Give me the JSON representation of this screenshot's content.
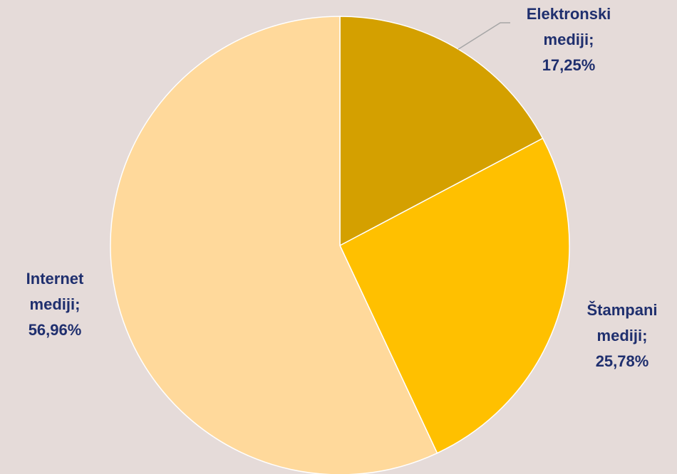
{
  "chart_data": {
    "type": "pie",
    "slices": [
      {
        "name": "Elektronski mediji",
        "value": 17.25,
        "name_line1": "Elektronski",
        "name_line2": "mediji;",
        "value_label": "17,25%",
        "color": "#d4a000"
      },
      {
        "name": "Štampani mediji",
        "value": 25.78,
        "name_line1": "Štampani",
        "name_line2": "mediji;",
        "value_label": "25,78%",
        "color": "#ffc000"
      },
      {
        "name": "Internet mediji",
        "value": 56.96,
        "name_line1": "Internet",
        "name_line2": "mediji;",
        "value_label": "56,96%",
        "color": "#ffd99b"
      }
    ],
    "start_angle_deg": 0,
    "direction": "clockwise",
    "label_color": "#1f2f6e",
    "background": "#e5dbd9",
    "legend": "none"
  }
}
